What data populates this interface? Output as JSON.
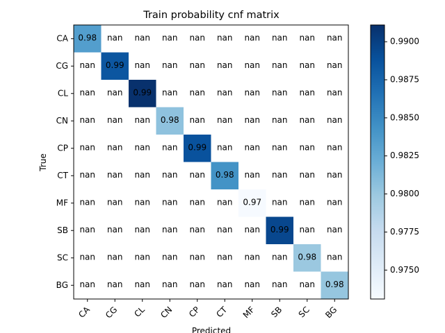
{
  "chart_data": {
    "type": "heatmap",
    "title": "Train probability cnf matrix",
    "xlabel": "Predicted",
    "ylabel": "True",
    "x_categories": [
      "CA",
      "CG",
      "CL",
      "CN",
      "CP",
      "CT",
      "MF",
      "SB",
      "SC",
      "BG"
    ],
    "y_categories": [
      "CA",
      "CG",
      "CL",
      "CN",
      "CP",
      "CT",
      "MF",
      "SB",
      "SC",
      "BG"
    ],
    "diagonal_values": [
      0.9834,
      0.9885,
      0.991,
      0.9805,
      0.9888,
      0.9843,
      0.9732,
      0.9895,
      0.98,
      0.9802
    ],
    "diagonal_labels": [
      "0.98",
      "0.99",
      "0.99",
      "0.98",
      "0.99",
      "0.98",
      "0.97",
      "0.99",
      "0.98",
      "0.98"
    ],
    "off_diagonal_label": "nan",
    "colormap": "Blues",
    "colorbar": {
      "range": [
        0.9731,
        0.9911
      ],
      "ticks": [
        0.975,
        0.9775,
        0.98,
        0.9825,
        0.985,
        0.9875,
        0.99
      ],
      "tick_labels": [
        "0.9750",
        "0.9775",
        "0.9800",
        "0.9825",
        "0.9850",
        "0.9875",
        "0.9900"
      ]
    }
  }
}
